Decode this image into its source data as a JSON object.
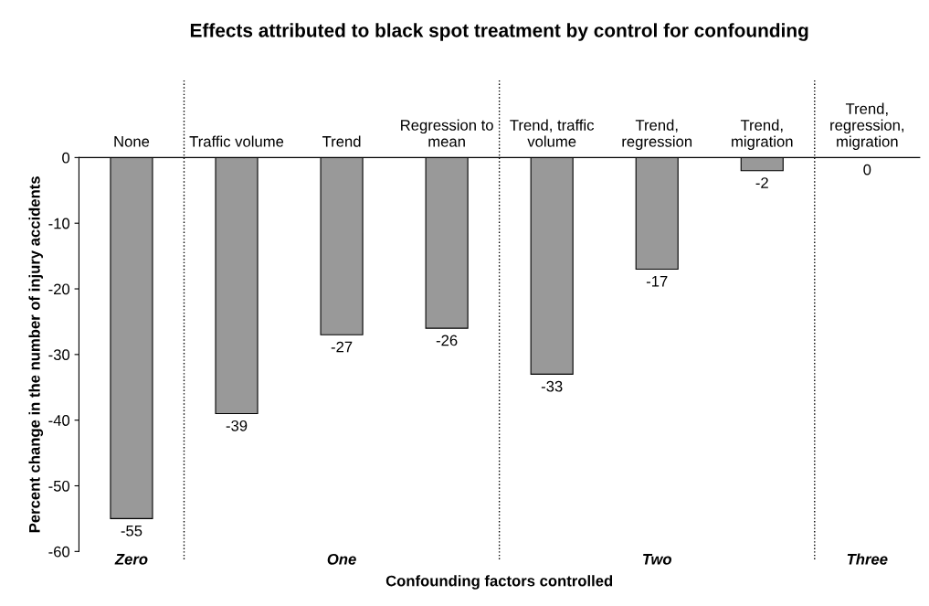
{
  "chart_data": {
    "type": "bar",
    "title": "Effects attributed to black spot treatment by control for confounding",
    "xlabel": "Confounding factors controlled",
    "ylabel": "Percent change in the number of injury accidents",
    "categories": [
      "None",
      "Traffic volume",
      "Trend",
      "Regression to\nmean",
      "Trend, traffic\nvolume",
      "Trend,\nregression",
      "Trend,\nmigration",
      "Trend,\nregression,\nmigration"
    ],
    "values": [
      -55,
      -39,
      -27,
      -26,
      -33,
      -17,
      -2,
      0
    ],
    "color": "#999999",
    "ylim": [
      -60,
      0
    ],
    "yticks": [
      -60,
      -50,
      -40,
      -30,
      -20,
      -10,
      0
    ],
    "data_labels": true,
    "grid": false,
    "annotations": [
      "Zero",
      "One",
      "Two",
      "Three"
    ]
  }
}
